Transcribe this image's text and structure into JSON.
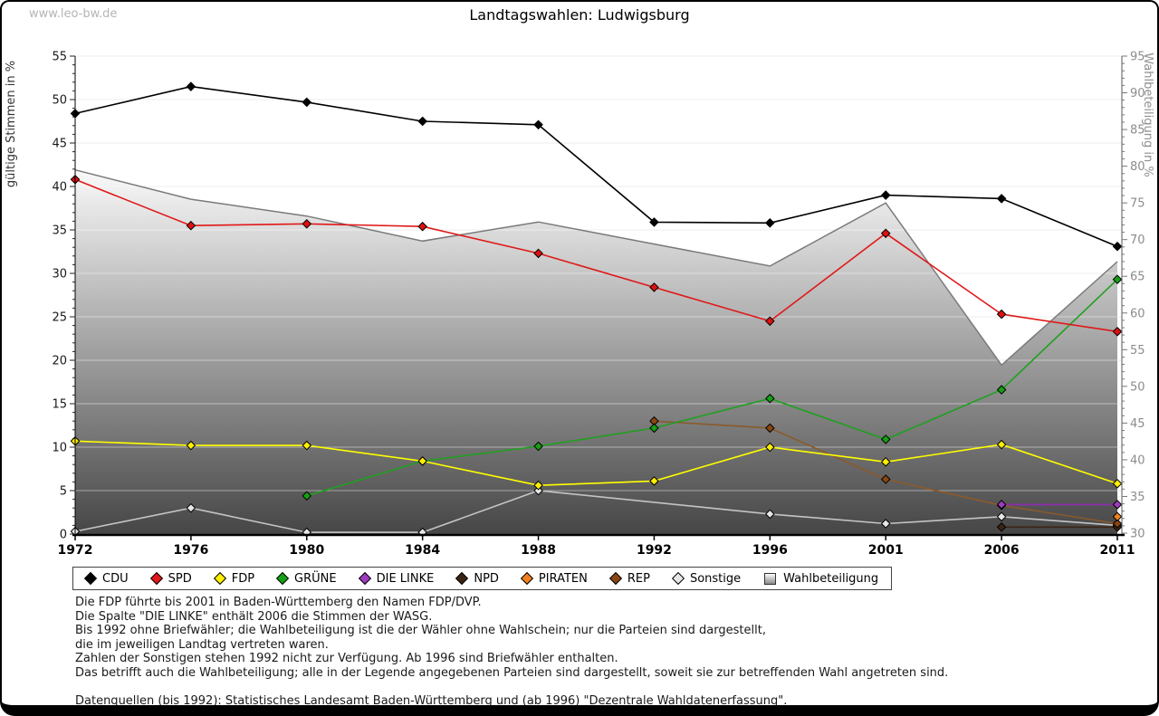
{
  "watermark": "www.leo-bw.de",
  "title": "Landtagswahlen: Ludwigsburg",
  "axes": {
    "left_label": "gültige Stimmen in %",
    "right_label": "Wahlbeteiligung in %"
  },
  "legend": [
    {
      "label": "CDU",
      "color": "#000000",
      "marker": "diamond"
    },
    {
      "label": "SPD",
      "color": "#e01818",
      "marker": "diamond"
    },
    {
      "label": "FDP",
      "color": "#ffee00",
      "marker": "diamond"
    },
    {
      "label": "GRÜNE",
      "color": "#15a015",
      "marker": "diamond"
    },
    {
      "label": "DIE LINKE",
      "color": "#9d3cc0",
      "marker": "diamond"
    },
    {
      "label": "NPD",
      "color": "#3a2414",
      "marker": "diamond"
    },
    {
      "label": "PIRATEN",
      "color": "#f08020",
      "marker": "diamond"
    },
    {
      "label": "REP",
      "color": "#8b4513",
      "marker": "diamond"
    },
    {
      "label": "Sonstige",
      "color": "#e6e6e6",
      "marker": "diamond"
    },
    {
      "label": "Wahlbeteiligung",
      "color": "#bbbbbb",
      "marker": "square"
    }
  ],
  "footnotes": [
    "Die FDP führte bis 2001 in Baden-Württemberg den Namen FDP/DVP.",
    "Die Spalte \"DIE LINKE\" enthält 2006 die Stimmen der WASG.",
    "Bis 1992 ohne Briefwähler; die Wahlbeteiligung ist die der Wähler ohne Wahlschein; nur die Parteien sind dargestellt,",
    "die im jeweiligen Landtag vertreten waren.",
    "Zahlen der Sonstigen stehen 1992 nicht zur Verfügung. Ab 1996 sind Briefwähler enthalten.",
    "Das betrifft auch die Wahlbeteiligung; alle in der Legende angegebenen Parteien sind dargestellt, soweit sie zur betreffenden Wahl angetreten sind.",
    "",
    "Datenquellen (bis 1992): Statistisches Landesamt Baden-Württemberg und (ab 1996) \"Dezentrale Wahldatenerfassung\"."
  ],
  "chart_data": {
    "type": "line",
    "title": "Landtagswahlen: Ludwigsburg",
    "x": [
      1972,
      1976,
      1980,
      1984,
      1988,
      1992,
      1996,
      2001,
      2006,
      2011
    ],
    "left_axis": {
      "label": "gültige Stimmen in %",
      "min": 0,
      "max": 55,
      "step": 5,
      "ticks": [
        0,
        5,
        10,
        15,
        20,
        25,
        30,
        35,
        40,
        45,
        50,
        55
      ]
    },
    "right_axis": {
      "label": "Wahlbeteiligung in %",
      "min": 30,
      "max": 95,
      "step": 5,
      "ticks": [
        30,
        35,
        40,
        45,
        50,
        55,
        60,
        65,
        70,
        75,
        80,
        85,
        90,
        95
      ]
    },
    "grid": true,
    "legend_position": "bottom",
    "series": [
      {
        "name": "Sonstige",
        "axis": "left",
        "color": "#c4c4c4",
        "marker_color": "#e6e6e6",
        "values": [
          0.3,
          3.0,
          0.2,
          0.2,
          5.0,
          null,
          2.3,
          1.2,
          2.0,
          1.0
        ]
      },
      {
        "name": "NPD",
        "axis": "left",
        "color": "#3a2414",
        "marker_color": "#3a2414",
        "values": [
          null,
          null,
          null,
          null,
          null,
          null,
          null,
          null,
          0.8,
          0.8
        ]
      },
      {
        "name": "REP",
        "axis": "left",
        "color": "#8b5a2b",
        "marker_color": "#8b4513",
        "values": [
          null,
          null,
          null,
          null,
          null,
          13.0,
          12.2,
          6.3,
          3.3,
          1.2
        ]
      },
      {
        "name": "PIRATEN",
        "axis": "left",
        "color": "#f08020",
        "marker_color": "#f08020",
        "values": [
          null,
          null,
          null,
          null,
          null,
          null,
          null,
          null,
          null,
          2.0
        ]
      },
      {
        "name": "DIE LINKE",
        "axis": "left",
        "color": "#8f2bb0",
        "marker_color": "#9d3cc0",
        "values": [
          null,
          null,
          null,
          null,
          null,
          null,
          null,
          null,
          3.4,
          3.4
        ]
      },
      {
        "name": "GRÜNE",
        "axis": "left",
        "color": "#1fa01f",
        "marker_color": "#15a015",
        "values": [
          null,
          null,
          4.4,
          8.4,
          10.1,
          12.2,
          15.6,
          10.9,
          16.6,
          29.3
        ]
      },
      {
        "name": "FDP",
        "axis": "left",
        "color": "#ffff00",
        "marker_color": "#ffee00",
        "values": [
          10.7,
          10.2,
          10.2,
          8.4,
          5.6,
          6.1,
          10.0,
          8.3,
          10.3,
          5.8
        ]
      },
      {
        "name": "SPD",
        "axis": "left",
        "color": "#e01818",
        "marker_color": "#dd1111",
        "values": [
          40.8,
          35.5,
          35.7,
          35.4,
          32.3,
          28.4,
          24.5,
          34.6,
          25.3,
          23.3
        ]
      },
      {
        "name": "CDU",
        "axis": "left",
        "color": "#000000",
        "marker_color": "#000000",
        "values": [
          48.4,
          51.5,
          49.7,
          47.5,
          47.1,
          35.9,
          35.8,
          39.0,
          38.6,
          33.1
        ]
      }
    ],
    "area_series": {
      "name": "Wahlbeteiligung",
      "axis": "right",
      "values": [
        79.5,
        75.5,
        73.2,
        69.8,
        72.4,
        69.4,
        66.4,
        75.0,
        52.9,
        67.0
      ],
      "fill": "gradient-white-to-darkgray",
      "line_color": "#7a7a7a"
    }
  }
}
